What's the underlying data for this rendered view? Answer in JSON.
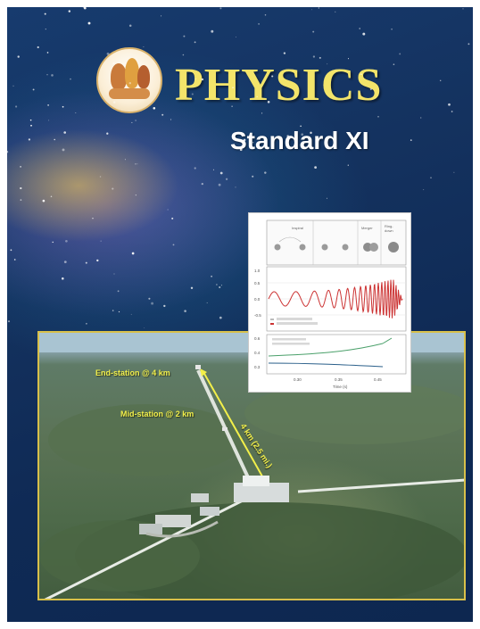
{
  "book": {
    "title": "PHYSICS",
    "subtitle": "Standard XI"
  },
  "photo": {
    "end_station_label": "End-station @ 4 km",
    "mid_station_label": "Mid-station @ 2 km",
    "arm_length_label": "4 km (2.5 mi.)"
  },
  "colors": {
    "title": "#f3e46a",
    "labels": "#f2ef4a",
    "frame": "#d8c04a",
    "sky": "#14325f"
  }
}
